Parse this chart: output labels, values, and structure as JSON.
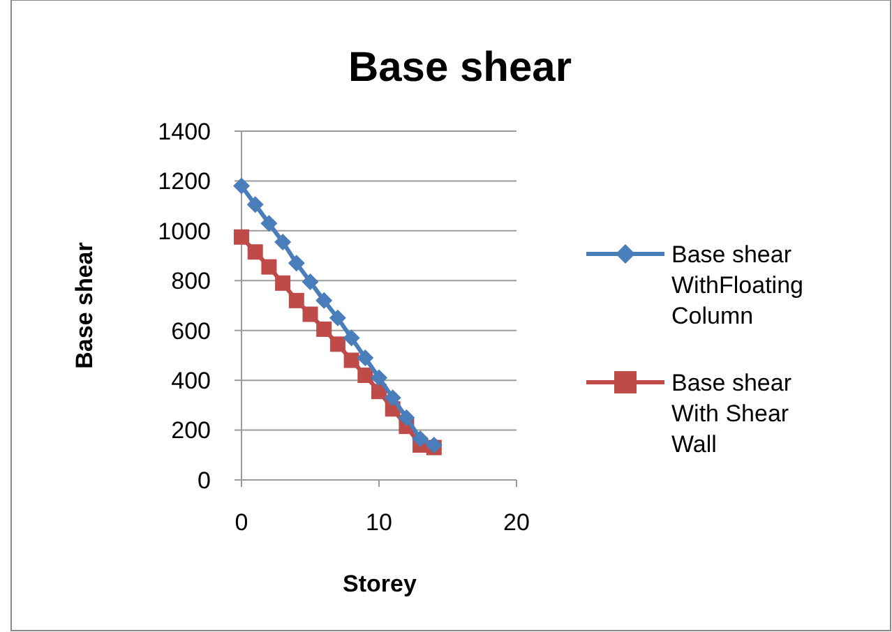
{
  "chart_data": {
    "type": "line",
    "title": "Base shear",
    "xlabel": "Storey",
    "ylabel": "Base shear",
    "x": [
      0,
      1,
      2,
      3,
      4,
      5,
      6,
      7,
      8,
      9,
      10,
      11,
      12,
      13,
      14
    ],
    "xlim": [
      0,
      20
    ],
    "xticks": [
      0,
      10,
      20
    ],
    "ylim": [
      0,
      1400
    ],
    "yticks": [
      0,
      200,
      400,
      600,
      800,
      1000,
      1200,
      1400
    ],
    "grid": "y",
    "legend": "right",
    "series": [
      {
        "name": "Base shear WithFloating Column",
        "color": "#4a7ebb",
        "marker": "diamond",
        "values": [
          1180,
          1105,
          1030,
          955,
          870,
          795,
          720,
          650,
          570,
          490,
          410,
          330,
          250,
          165,
          140
        ]
      },
      {
        "name": "Base shear With Shear Wall",
        "color": "#be4b48",
        "marker": "square",
        "values": [
          975,
          915,
          855,
          790,
          720,
          665,
          605,
          545,
          480,
          420,
          355,
          285,
          215,
          140,
          130
        ]
      }
    ]
  }
}
